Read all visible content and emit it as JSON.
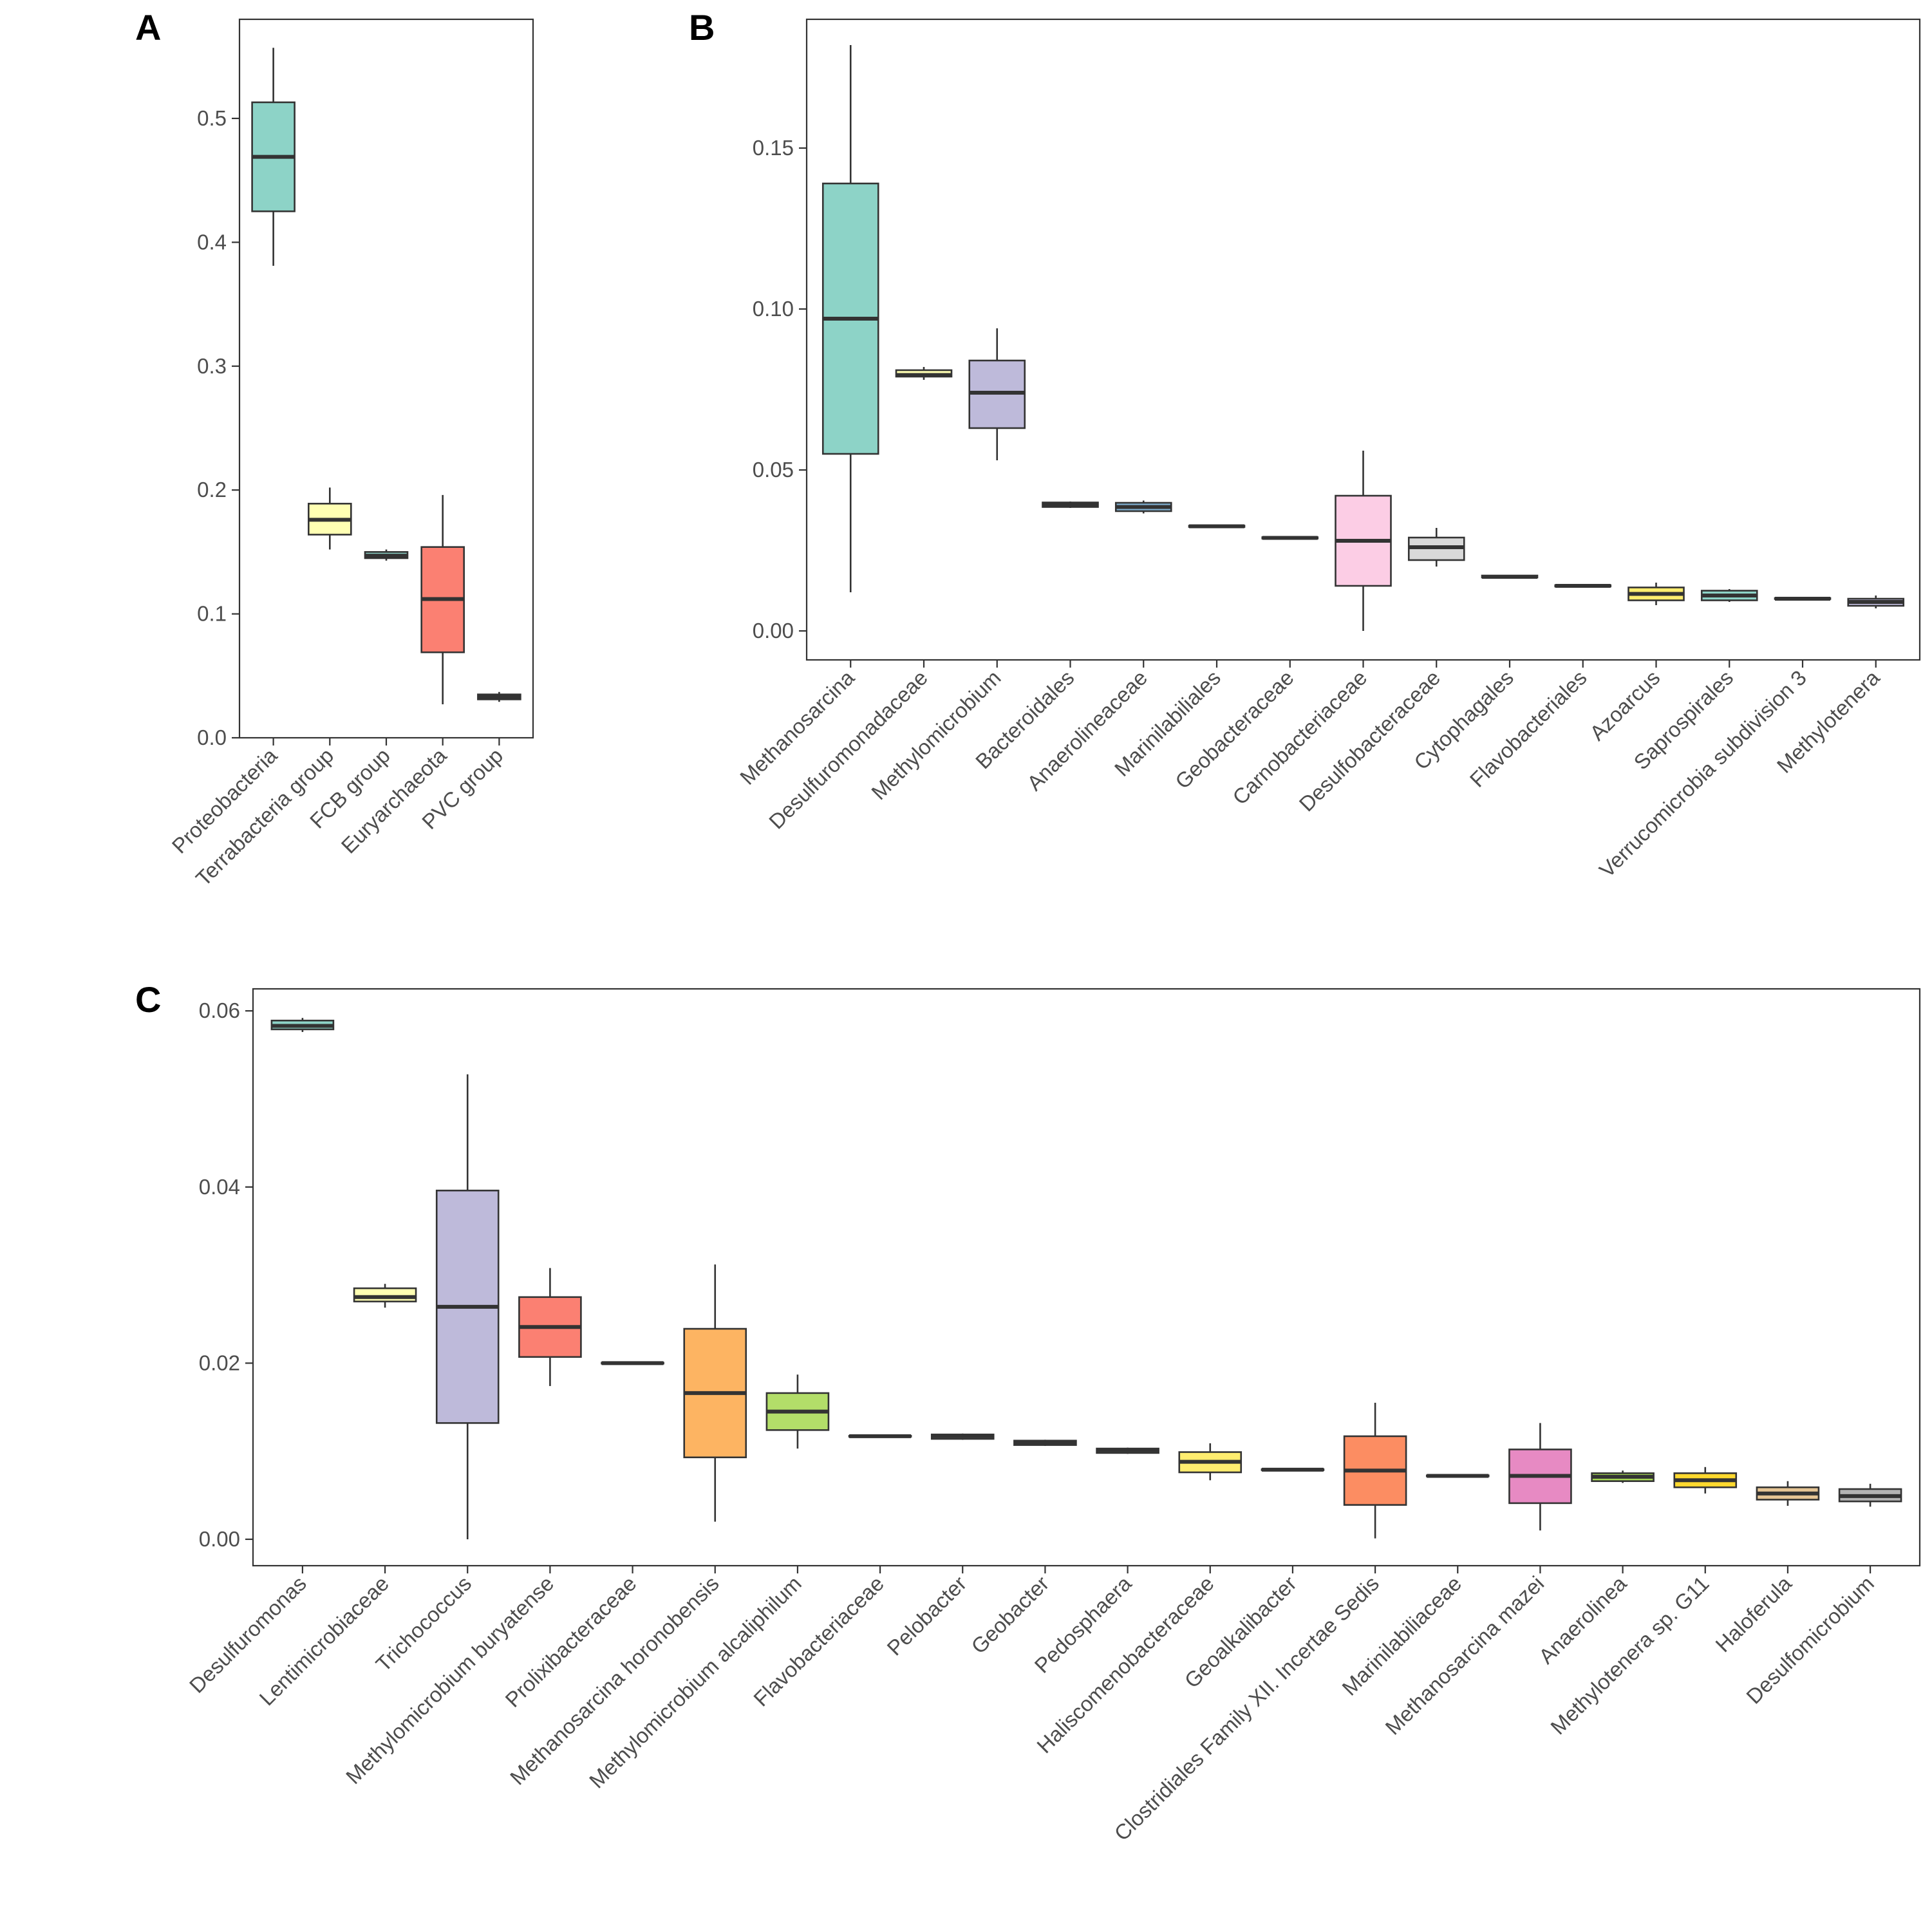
{
  "panels": [
    {
      "id": "A",
      "letter": "A",
      "chart_data": {
        "type": "box",
        "ylim": [
          0,
          0.58
        ],
        "yticks": [
          0.0,
          0.1,
          0.2,
          0.3,
          0.4,
          0.5
        ],
        "ytick_labels": [
          "0.0",
          "0.1",
          "0.2",
          "0.3",
          "0.4",
          "0.5"
        ],
        "xlabel": "",
        "ylabel": "",
        "categories": [
          "Proteobacteria",
          "Terrabacteria group",
          "FCB group",
          "Euryarchaeota",
          "PVC group"
        ],
        "colors": [
          "#8dd3c7",
          "#ffffb3",
          "#8dd3c7",
          "#fb8072",
          "#80b1d3"
        ],
        "boxes": [
          {
            "min": 0.381,
            "q1": 0.425,
            "median": 0.469,
            "q3": 0.513,
            "max": 0.557
          },
          {
            "min": 0.152,
            "q1": 0.164,
            "median": 0.176,
            "q3": 0.189,
            "max": 0.202
          },
          {
            "min": 0.143,
            "q1": 0.145,
            "median": 0.147,
            "q3": 0.15,
            "max": 0.152
          },
          {
            "min": 0.027,
            "q1": 0.069,
            "median": 0.112,
            "q3": 0.154,
            "max": 0.196
          },
          {
            "min": 0.029,
            "q1": 0.031,
            "median": 0.033,
            "q3": 0.035,
            "max": 0.037
          }
        ]
      }
    },
    {
      "id": "B",
      "letter": "B",
      "chart_data": {
        "type": "box",
        "ylim": [
          -0.009,
          0.19
        ],
        "yticks": [
          0.0,
          0.05,
          0.1,
          0.15
        ],
        "ytick_labels": [
          "0.00",
          "0.05",
          "0.10",
          "0.15"
        ],
        "xlabel": "",
        "ylabel": "",
        "categories": [
          "Methanosarcina",
          "Desulfuromonadaceae",
          "Methylomicrobium",
          "Bacteroidales",
          "Anaerolineaceae",
          "Marinilabiliales",
          "Geobacteraceae",
          "Carnobacteriaceae",
          "Desulfobacteraceae",
          "Cytophagales",
          "Flavobacteriales",
          "Azoarcus",
          "Saprospirales",
          "Verrucomicrobia subdivision 3",
          "Methylotenera"
        ],
        "colors": [
          "#8dd3c7",
          "#ffffb3",
          "#bebada",
          "#fb8072",
          "#80b1d3",
          "#fdb462",
          "#b3de69",
          "#fccde5",
          "#d9d9d9",
          "#bc80bd",
          "#ccebc5",
          "#ffed6f",
          "#8dd3c7",
          "#ffffb3",
          "#bebada"
        ],
        "boxes": [
          {
            "min": 0.012,
            "q1": 0.055,
            "median": 0.097,
            "q3": 0.139,
            "max": 0.182
          },
          {
            "min": 0.078,
            "q1": 0.079,
            "median": 0.0795,
            "q3": 0.081,
            "max": 0.082
          },
          {
            "min": 0.053,
            "q1": 0.063,
            "median": 0.074,
            "q3": 0.084,
            "max": 0.094
          },
          {
            "min": 0.0382,
            "q1": 0.0385,
            "median": 0.0392,
            "q3": 0.0399,
            "max": 0.0402
          },
          {
            "min": 0.0365,
            "q1": 0.0372,
            "median": 0.0385,
            "q3": 0.0398,
            "max": 0.0405
          },
          {
            "min": 0.0322,
            "q1": 0.0323,
            "median": 0.0325,
            "q3": 0.0327,
            "max": 0.0328
          },
          {
            "min": 0.0286,
            "q1": 0.0287,
            "median": 0.0289,
            "q3": 0.0291,
            "max": 0.0292
          },
          {
            "min": 0.0,
            "q1": 0.014,
            "median": 0.028,
            "q3": 0.042,
            "max": 0.056
          },
          {
            "min": 0.02,
            "q1": 0.022,
            "median": 0.026,
            "q3": 0.029,
            "max": 0.032
          },
          {
            "min": 0.0165,
            "q1": 0.0166,
            "median": 0.0168,
            "q3": 0.0172,
            "max": 0.0174
          },
          {
            "min": 0.0137,
            "q1": 0.0138,
            "median": 0.014,
            "q3": 0.0142,
            "max": 0.0143
          },
          {
            "min": 0.008,
            "q1": 0.0095,
            "median": 0.0115,
            "q3": 0.0135,
            "max": 0.015
          },
          {
            "min": 0.009,
            "q1": 0.0095,
            "median": 0.011,
            "q3": 0.0125,
            "max": 0.013
          },
          {
            "min": 0.0098,
            "q1": 0.0099,
            "median": 0.01,
            "q3": 0.0102,
            "max": 0.0103
          },
          {
            "min": 0.007,
            "q1": 0.0078,
            "median": 0.009,
            "q3": 0.01,
            "max": 0.011
          }
        ]
      }
    },
    {
      "id": "C",
      "letter": "C",
      "chart_data": {
        "type": "box",
        "ylim": [
          -0.003,
          0.0625
        ],
        "yticks": [
          0.0,
          0.02,
          0.04,
          0.06
        ],
        "ytick_labels": [
          "0.00",
          "0.02",
          "0.04",
          "0.06"
        ],
        "xlabel": "",
        "ylabel": "",
        "categories": [
          "Desulfuromonas",
          "Lentimicrobiaceae",
          "Trichococcus",
          "Methylomicrobium buryatense",
          "Prolixibacteraceae",
          "Methanosarcina horonobensis",
          "Methylomicrobium alcaliphilum",
          "Flavobacteriaceae",
          "Pelobacter",
          "Geobacter",
          "Pedosphaera",
          "Haliscomenobacteraceae",
          "Geoalkalibacter",
          "Clostridiales Family XII. Incertae Sedis",
          "Marinilabiliaceae",
          "Methanosarcina mazei",
          "Anaerolinea",
          "Methylotenera sp. G11",
          "Haloferula",
          "Desulfomicrobium"
        ],
        "colors": [
          "#8dd3c7",
          "#ffffb3",
          "#bebada",
          "#fb8072",
          "#80b1d3",
          "#fdb462",
          "#b3de69",
          "#fccde5",
          "#d9d9d9",
          "#bc80bd",
          "#ccebc5",
          "#ffed6f",
          "#66c2a5",
          "#fc8d62",
          "#8da0cb",
          "#e78ac3",
          "#a6d854",
          "#ffd92f",
          "#e5c494",
          "#b3b3b3"
        ],
        "boxes": [
          {
            "min": 0.0576,
            "q1": 0.0579,
            "median": 0.0583,
            "q3": 0.0589,
            "max": 0.0592
          },
          {
            "min": 0.0263,
            "q1": 0.027,
            "median": 0.0275,
            "q3": 0.0285,
            "max": 0.029
          },
          {
            "min": 0.0,
            "q1": 0.0132,
            "median": 0.0264,
            "q3": 0.0396,
            "max": 0.0528
          },
          {
            "min": 0.0174,
            "q1": 0.0207,
            "median": 0.0241,
            "q3": 0.0275,
            "max": 0.0308
          },
          {
            "min": 0.0199,
            "q1": 0.01995,
            "median": 0.02,
            "q3": 0.02005,
            "max": 0.0201
          },
          {
            "min": 0.002,
            "q1": 0.0093,
            "median": 0.0166,
            "q3": 0.0239,
            "max": 0.0312
          },
          {
            "min": 0.0103,
            "q1": 0.0124,
            "median": 0.0145,
            "q3": 0.0166,
            "max": 0.0187
          },
          {
            "min": 0.0116,
            "q1": 0.01165,
            "median": 0.0117,
            "q3": 0.01175,
            "max": 0.0118
          },
          {
            "min": 0.0113,
            "q1": 0.0114,
            "median": 0.0117,
            "q3": 0.0119,
            "max": 0.012
          },
          {
            "min": 0.0106,
            "q1": 0.0107,
            "median": 0.011,
            "q3": 0.0112,
            "max": 0.0113
          },
          {
            "min": 0.0097,
            "q1": 0.0098,
            "median": 0.0101,
            "q3": 0.0103,
            "max": 0.0104
          },
          {
            "min": 0.0067,
            "q1": 0.0076,
            "median": 0.0088,
            "q3": 0.0099,
            "max": 0.0109
          },
          {
            "min": 0.0078,
            "q1": 0.00785,
            "median": 0.0079,
            "q3": 0.00795,
            "max": 0.008
          },
          {
            "min": 0.0001,
            "q1": 0.0039,
            "median": 0.0078,
            "q3": 0.0117,
            "max": 0.0155
          },
          {
            "min": 0.0071,
            "q1": 0.00715,
            "median": 0.0072,
            "q3": 0.00725,
            "max": 0.0073
          },
          {
            "min": 0.001,
            "q1": 0.0041,
            "median": 0.0072,
            "q3": 0.0102,
            "max": 0.0132
          },
          {
            "min": 0.0064,
            "q1": 0.0066,
            "median": 0.0071,
            "q3": 0.0075,
            "max": 0.0078
          },
          {
            "min": 0.0052,
            "q1": 0.0059,
            "median": 0.0067,
            "q3": 0.0075,
            "max": 0.0082
          },
          {
            "min": 0.0038,
            "q1": 0.0045,
            "median": 0.0052,
            "q3": 0.0059,
            "max": 0.0066
          },
          {
            "min": 0.0037,
            "q1": 0.0043,
            "median": 0.0049,
            "q3": 0.0057,
            "max": 0.0063
          }
        ]
      }
    }
  ]
}
